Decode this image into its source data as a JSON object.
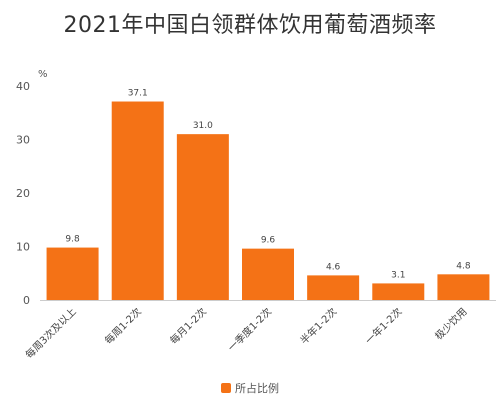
{
  "chart_data": {
    "type": "bar",
    "title": "2021年中国白领群体饮用葡萄酒频率",
    "yunit": "%",
    "ylim": [
      0,
      40
    ],
    "yticks": [
      0,
      10,
      20,
      30,
      40
    ],
    "grid": false,
    "legend_position": "bottom-center",
    "categories": [
      "每周3次及以上",
      "每周1-2次",
      "每月1-2次",
      "一季度1-2次",
      "半年1-2次",
      "一年1-2次",
      "极少饮用"
    ],
    "series": [
      {
        "name": "所占比例",
        "color": "#f47216",
        "values": [
          9.8,
          37.1,
          31.0,
          9.6,
          4.6,
          3.1,
          4.8
        ],
        "value_labels": [
          "9.8",
          "37.1",
          "31.0",
          "9.6",
          "4.6",
          "3.1",
          "4.8"
        ]
      }
    ]
  }
}
